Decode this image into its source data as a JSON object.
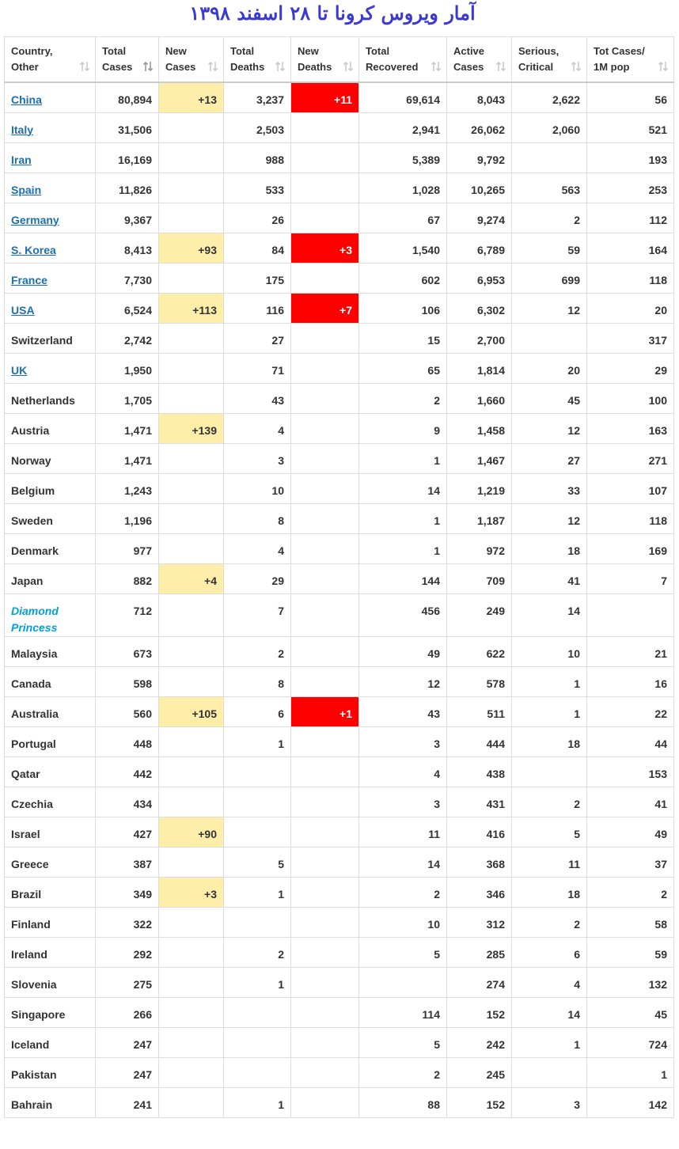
{
  "title": "آمار ویروس کرونا تا ۲۸  اسفند ۱۳۹۸",
  "table": {
    "header": [
      [
        "Country,",
        "Other"
      ],
      [
        "Total",
        "Cases"
      ],
      [
        "New",
        "Cases"
      ],
      [
        "Total",
        "Deaths"
      ],
      [
        "New",
        "Deaths"
      ],
      [
        "Total",
        "Recovered"
      ],
      [
        "Active",
        "Cases"
      ],
      [
        "Serious,",
        "Critical"
      ],
      [
        "Tot Cases/",
        "1M pop"
      ]
    ],
    "rows": [
      {
        "link": true,
        "cells": [
          "China",
          "80,894",
          "+13",
          "3,237",
          "+11",
          "69,614",
          "8,043",
          "2,622",
          "56"
        ]
      },
      {
        "link": true,
        "cells": [
          "Italy",
          "31,506",
          null,
          "2,503",
          null,
          "2,941",
          "26,062",
          "2,060",
          "521"
        ]
      },
      {
        "link": true,
        "cells": [
          "Iran",
          "16,169",
          null,
          "988",
          null,
          "5,389",
          "9,792",
          null,
          "193"
        ]
      },
      {
        "link": true,
        "cells": [
          "Spain",
          "11,826",
          null,
          "533",
          null,
          "1,028",
          "10,265",
          "563",
          "253"
        ]
      },
      {
        "link": true,
        "cells": [
          "Germany",
          "9,367",
          null,
          "26",
          null,
          "67",
          "9,274",
          "2",
          "112"
        ]
      },
      {
        "link": true,
        "cells": [
          "S. Korea",
          "8,413",
          "+93",
          "84",
          "+3",
          "1,540",
          "6,789",
          "59",
          "164"
        ]
      },
      {
        "link": true,
        "cells": [
          "France",
          "7,730",
          null,
          "175",
          null,
          "602",
          "6,953",
          "699",
          "118"
        ]
      },
      {
        "link": true,
        "cells": [
          "USA",
          "6,524",
          "+113",
          "116",
          "+7",
          "106",
          "6,302",
          "12",
          "20"
        ]
      },
      {
        "link": false,
        "cells": [
          "Switzerland",
          "2,742",
          null,
          "27",
          null,
          "15",
          "2,700",
          null,
          "317"
        ]
      },
      {
        "link": true,
        "cells": [
          "UK",
          "1,950",
          null,
          "71",
          null,
          "65",
          "1,814",
          "20",
          "29"
        ]
      },
      {
        "link": false,
        "cells": [
          "Netherlands",
          "1,705",
          null,
          "43",
          null,
          "2",
          "1,660",
          "45",
          "100"
        ]
      },
      {
        "link": false,
        "cells": [
          "Austria",
          "1,471",
          "+139",
          "4",
          null,
          "9",
          "1,458",
          "12",
          "163"
        ]
      },
      {
        "link": false,
        "cells": [
          "Norway",
          "1,471",
          null,
          "3",
          null,
          "1",
          "1,467",
          "27",
          "271"
        ]
      },
      {
        "link": false,
        "cells": [
          "Belgium",
          "1,243",
          null,
          "10",
          null,
          "14",
          "1,219",
          "33",
          "107"
        ]
      },
      {
        "link": false,
        "cells": [
          "Sweden",
          "1,196",
          null,
          "8",
          null,
          "1",
          "1,187",
          "12",
          "118"
        ]
      },
      {
        "link": false,
        "cells": [
          "Denmark",
          "977",
          null,
          "4",
          null,
          "1",
          "972",
          "18",
          "169"
        ]
      },
      {
        "link": false,
        "cells": [
          "Japan",
          "882",
          "+4",
          "29",
          null,
          "144",
          "709",
          "41",
          "7"
        ]
      },
      {
        "link": false,
        "italic": true,
        "cells": [
          "Diamond Princess",
          "712",
          null,
          "7",
          null,
          "456",
          "249",
          "14",
          null
        ]
      },
      {
        "link": false,
        "cells": [
          "Malaysia",
          "673",
          null,
          "2",
          null,
          "49",
          "622",
          "10",
          "21"
        ]
      },
      {
        "link": false,
        "cells": [
          "Canada",
          "598",
          null,
          "8",
          null,
          "12",
          "578",
          "1",
          "16"
        ]
      },
      {
        "link": false,
        "cells": [
          "Australia",
          "560",
          "+105",
          "6",
          "+1",
          "43",
          "511",
          "1",
          "22"
        ]
      },
      {
        "link": false,
        "cells": [
          "Portugal",
          "448",
          null,
          "1",
          null,
          "3",
          "444",
          "18",
          "44"
        ]
      },
      {
        "link": false,
        "cells": [
          "Qatar",
          "442",
          null,
          null,
          null,
          "4",
          "438",
          null,
          "153"
        ]
      },
      {
        "link": false,
        "cells": [
          "Czechia",
          "434",
          null,
          null,
          null,
          "3",
          "431",
          "2",
          "41"
        ]
      },
      {
        "link": false,
        "cells": [
          "Israel",
          "427",
          "+90",
          null,
          null,
          "11",
          "416",
          "5",
          "49"
        ]
      },
      {
        "link": false,
        "cells": [
          "Greece",
          "387",
          null,
          "5",
          null,
          "14",
          "368",
          "11",
          "37"
        ]
      },
      {
        "link": false,
        "cells": [
          "Brazil",
          "349",
          "+3",
          "1",
          null,
          "2",
          "346",
          "18",
          "2"
        ]
      },
      {
        "link": false,
        "cells": [
          "Finland",
          "322",
          null,
          null,
          null,
          "10",
          "312",
          "2",
          "58"
        ]
      },
      {
        "link": false,
        "cells": [
          "Ireland",
          "292",
          null,
          "2",
          null,
          "5",
          "285",
          "6",
          "59"
        ]
      },
      {
        "link": false,
        "cells": [
          "Slovenia",
          "275",
          null,
          "1",
          null,
          null,
          "274",
          "4",
          "132"
        ]
      },
      {
        "link": false,
        "cells": [
          "Singapore",
          "266",
          null,
          null,
          null,
          "114",
          "152",
          "14",
          "45"
        ]
      },
      {
        "link": false,
        "cells": [
          "Iceland",
          "247",
          null,
          null,
          null,
          "5",
          "242",
          "1",
          "724"
        ]
      },
      {
        "link": false,
        "cells": [
          "Pakistan",
          "247",
          null,
          null,
          null,
          "2",
          "245",
          null,
          "1"
        ]
      },
      {
        "link": false,
        "cells": [
          "Bahrain",
          "241",
          null,
          "1",
          null,
          "88",
          "152",
          "3",
          "142"
        ]
      }
    ]
  }
}
